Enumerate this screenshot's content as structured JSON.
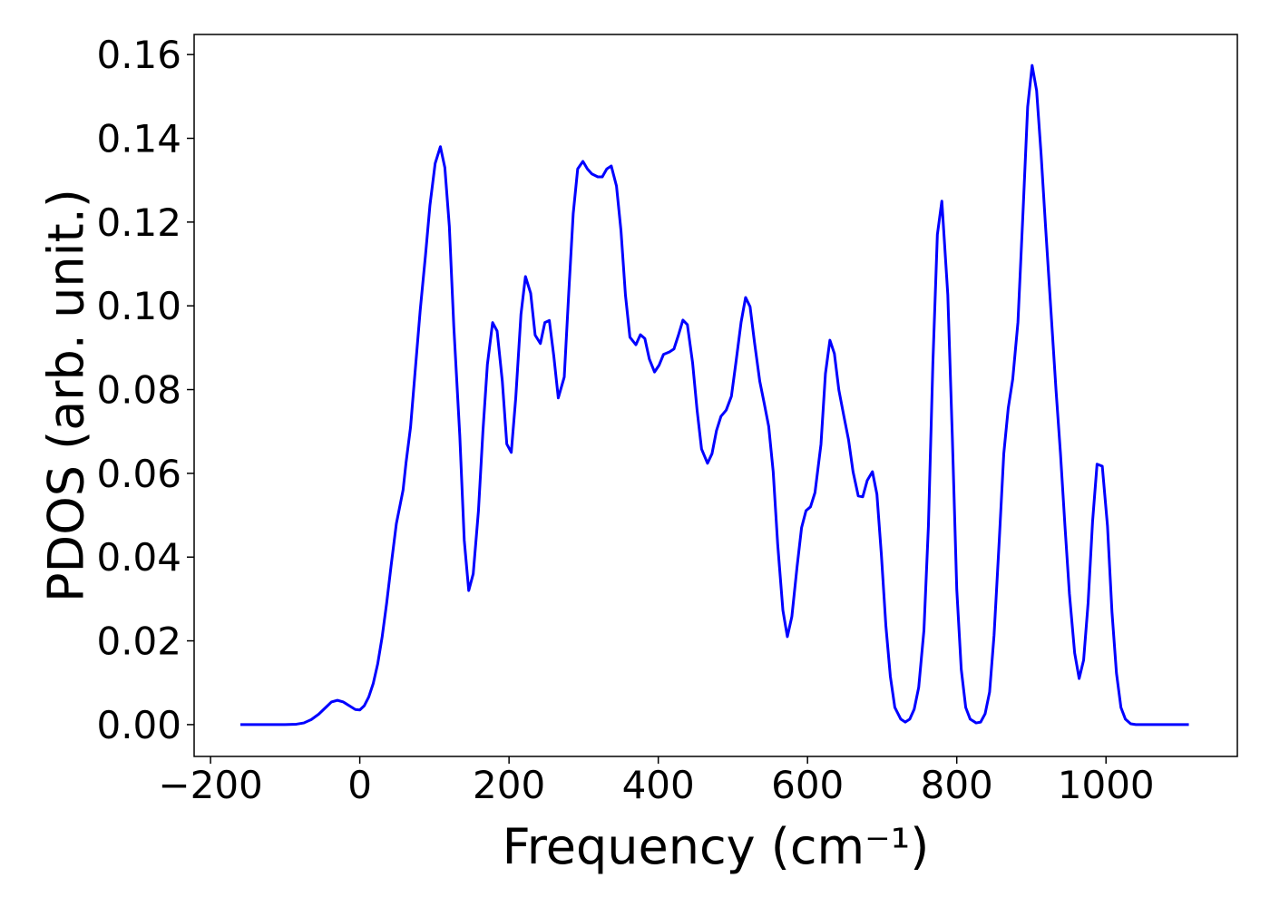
{
  "chart_data": {
    "type": "line",
    "xlabel": "Frequency (cm⁻¹)",
    "ylabel": "PDOS (arb. unit.)",
    "color": "#0000ff",
    "x": [
      -160,
      -100,
      -85,
      -75,
      -65,
      -55,
      -45,
      -38,
      -30,
      -22,
      -14,
      -6,
      0,
      6,
      12,
      18,
      24,
      30,
      36,
      42,
      49,
      58,
      62,
      68,
      74,
      81,
      88,
      94,
      101,
      108,
      114,
      120,
      126,
      134,
      140,
      146,
      152,
      159,
      165,
      171,
      178,
      184,
      191,
      197,
      203,
      209,
      216,
      222,
      229,
      235,
      242,
      248,
      254,
      260,
      266,
      274,
      280,
      286,
      292,
      299,
      305,
      311,
      319,
      325,
      331,
      337,
      344,
      350,
      356,
      362,
      370,
      376,
      382,
      388,
      395,
      401,
      407,
      415,
      421,
      427,
      433,
      439,
      446,
      452,
      458,
      466,
      472,
      478,
      484,
      491,
      498,
      504,
      511,
      517,
      523,
      529,
      536,
      542,
      548,
      554,
      560,
      567,
      573,
      579,
      586,
      592,
      598,
      604,
      610,
      618,
      624,
      630,
      636,
      642,
      649,
      655,
      661,
      668,
      674,
      680,
      687,
      693,
      699,
      705,
      711,
      717,
      725,
      731,
      737,
      743,
      749,
      756,
      762,
      768,
      774,
      780,
      788,
      794,
      800,
      806,
      812,
      818,
      826,
      832,
      838,
      844,
      850,
      857,
      863,
      869,
      875,
      882,
      889,
      895,
      901,
      907,
      913,
      919,
      926,
      933,
      939,
      945,
      951,
      958,
      964,
      970,
      976,
      982,
      988,
      995,
      1002,
      1008,
      1014,
      1020,
      1026,
      1033,
      1040,
      1111
    ],
    "values": [
      0,
      0,
      0.0001,
      0.0004,
      0.0012,
      0.0025,
      0.0042,
      0.0054,
      0.0058,
      0.0054,
      0.0045,
      0.0036,
      0.0035,
      0.0045,
      0.0066,
      0.0098,
      0.0145,
      0.021,
      0.029,
      0.038,
      0.048,
      0.056,
      0.0626,
      0.071,
      0.084,
      0.099,
      0.112,
      0.124,
      0.134,
      0.138,
      0.133,
      0.119,
      0.095,
      0.069,
      0.044,
      0.032,
      0.036,
      0.051,
      0.07,
      0.086,
      0.096,
      0.094,
      0.082,
      0.067,
      0.065,
      0.078,
      0.098,
      0.107,
      0.103,
      0.093,
      0.091,
      0.096,
      0.0965,
      0.088,
      0.078,
      0.083,
      0.103,
      0.122,
      0.1327,
      0.1345,
      0.1327,
      0.1315,
      0.1308,
      0.1308,
      0.1327,
      0.1334,
      0.1286,
      0.118,
      0.1026,
      0.0925,
      0.0907,
      0.0931,
      0.0922,
      0.0873,
      0.0842,
      0.0858,
      0.0884,
      0.089,
      0.0897,
      0.093,
      0.0966,
      0.0955,
      0.0864,
      0.0751,
      0.0658,
      0.0624,
      0.0647,
      0.0702,
      0.0736,
      0.0751,
      0.0784,
      0.0864,
      0.0961,
      0.102,
      0.0998,
      0.0912,
      0.082,
      0.0767,
      0.0712,
      0.0604,
      0.0431,
      0.0273,
      0.021,
      0.0258,
      0.0377,
      0.047,
      0.0511,
      0.052,
      0.0554,
      0.0669,
      0.0838,
      0.0918,
      0.0886,
      0.0799,
      0.0734,
      0.068,
      0.0604,
      0.0546,
      0.0544,
      0.0583,
      0.0604,
      0.055,
      0.0405,
      0.0236,
      0.0115,
      0.0041,
      0.0013,
      0.0006,
      0.0013,
      0.0037,
      0.0089,
      0.0225,
      0.0474,
      0.0864,
      0.117,
      0.125,
      0.1026,
      0.069,
      0.0323,
      0.0132,
      0.0041,
      0.0013,
      0.0004,
      0.0006,
      0.0026,
      0.0078,
      0.0214,
      0.0442,
      0.0647,
      0.0756,
      0.0825,
      0.0961,
      0.1232,
      0.1475,
      0.1574,
      0.1514,
      0.1362,
      0.1189,
      0.0994,
      0.0799,
      0.0647,
      0.0474,
      0.0312,
      0.0171,
      0.011,
      0.0154,
      0.029,
      0.0485,
      0.0622,
      0.0617,
      0.0474,
      0.0269,
      0.0123,
      0.0041,
      0.0013,
      0.0002,
      0,
      0
    ],
    "xlim": [
      -222,
      1176
    ],
    "ylim": [
      -0.0076,
      0.1648
    ],
    "xticks": [
      {
        "value": -200,
        "label": "−200"
      },
      0,
      200,
      400,
      600,
      800,
      1000
    ],
    "yticks": [
      {
        "value": 0,
        "label": "0.00"
      },
      {
        "value": 0.02,
        "label": "0.02"
      },
      {
        "value": 0.04,
        "label": "0.04"
      },
      {
        "value": 0.06,
        "label": "0.06"
      },
      {
        "value": 0.08,
        "label": "0.08"
      },
      {
        "value": 0.1,
        "label": "0.10"
      },
      {
        "value": 0.12,
        "label": "0.12"
      },
      {
        "value": 0.14,
        "label": "0.14"
      },
      {
        "value": 0.16,
        "label": "0.16"
      }
    ],
    "grid": false
  }
}
